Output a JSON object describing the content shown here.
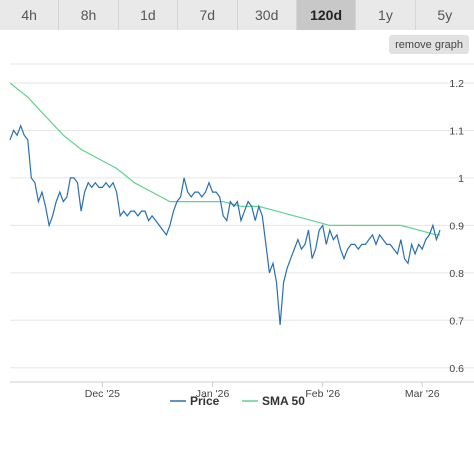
{
  "range_tabs": [
    "4h",
    "8h",
    "1d",
    "7d",
    "30d",
    "120d",
    "1y",
    "5y"
  ],
  "active_tab_index": 5,
  "remove_graph_label": "remove graph",
  "colors": {
    "price": "#2a6fb0",
    "sma": "#5fd38d",
    "grid": "#e6e6e6",
    "active_tab": "#c8c8c8"
  },
  "chart_data": {
    "type": "line",
    "title": "",
    "xlabel": "",
    "ylabel": "",
    "x_ticks": [
      "Dec '25",
      "Jan '26",
      "Feb '26",
      "Mar '26"
    ],
    "x_tick_days": [
      26,
      57,
      88,
      116
    ],
    "xlim_days": [
      0,
      121
    ],
    "y_ticks": [
      0.6,
      0.7,
      0.8,
      0.9,
      1,
      1.1,
      1.2
    ],
    "ylim": [
      0.57,
      1.24
    ],
    "grid": true,
    "legend_position": "bottom-center",
    "series": [
      {
        "name": "Price",
        "x": [
          0,
          1,
          2,
          3,
          4,
          5,
          6,
          7,
          8,
          9,
          10,
          11,
          12,
          13,
          14,
          15,
          16,
          17,
          18,
          19,
          20,
          21,
          22,
          23,
          24,
          25,
          26,
          27,
          28,
          29,
          30,
          31,
          32,
          33,
          34,
          35,
          36,
          37,
          38,
          39,
          40,
          41,
          42,
          43,
          44,
          45,
          46,
          47,
          48,
          49,
          50,
          51,
          52,
          53,
          54,
          55,
          56,
          57,
          58,
          59,
          60,
          61,
          62,
          63,
          64,
          65,
          66,
          67,
          68,
          69,
          70,
          71,
          72,
          73,
          74,
          75,
          76,
          77,
          78,
          79,
          80,
          81,
          82,
          83,
          84,
          85,
          86,
          87,
          88,
          89,
          90,
          91,
          92,
          93,
          94,
          95,
          96,
          97,
          98,
          99,
          100,
          101,
          102,
          103,
          104,
          105,
          106,
          107,
          108,
          109,
          110,
          111,
          112,
          113,
          114,
          115,
          116,
          117,
          118,
          119,
          120,
          121
        ],
        "values": [
          1.08,
          1.1,
          1.09,
          1.11,
          1.09,
          1.08,
          1.0,
          0.99,
          0.95,
          0.97,
          0.94,
          0.9,
          0.92,
          0.95,
          0.97,
          0.95,
          0.96,
          1.0,
          1.0,
          0.99,
          0.93,
          0.97,
          0.99,
          0.98,
          0.99,
          0.98,
          0.98,
          0.99,
          0.98,
          0.99,
          0.97,
          0.92,
          0.93,
          0.92,
          0.93,
          0.93,
          0.92,
          0.93,
          0.93,
          0.91,
          0.92,
          0.91,
          0.9,
          0.89,
          0.88,
          0.9,
          0.93,
          0.95,
          0.96,
          1.0,
          0.97,
          0.96,
          0.97,
          0.97,
          0.96,
          0.97,
          0.99,
          0.97,
          0.97,
          0.96,
          0.92,
          0.91,
          0.95,
          0.94,
          0.95,
          0.91,
          0.93,
          0.95,
          0.94,
          0.91,
          0.94,
          0.92,
          0.86,
          0.8,
          0.82,
          0.78,
          0.69,
          0.78,
          0.81,
          0.83,
          0.85,
          0.87,
          0.85,
          0.86,
          0.89,
          0.83,
          0.85,
          0.89,
          0.9,
          0.86,
          0.89,
          0.87,
          0.88,
          0.85,
          0.83,
          0.85,
          0.86,
          0.86,
          0.85,
          0.86,
          0.86,
          0.87,
          0.88,
          0.86,
          0.88,
          0.87,
          0.86,
          0.86,
          0.85,
          0.84,
          0.87,
          0.83,
          0.82,
          0.86,
          0.84,
          0.86,
          0.85,
          0.87,
          0.88,
          0.9,
          0.87,
          0.89
        ]
      },
      {
        "name": "SMA 50",
        "x": [
          0,
          5,
          10,
          15,
          20,
          25,
          30,
          35,
          40,
          45,
          50,
          55,
          60,
          65,
          70,
          75,
          80,
          85,
          90,
          95,
          100,
          105,
          110,
          115,
          120,
          121
        ],
        "values": [
          1.2,
          1.17,
          1.13,
          1.09,
          1.06,
          1.04,
          1.02,
          0.99,
          0.97,
          0.95,
          0.95,
          0.95,
          0.95,
          0.94,
          0.94,
          0.93,
          0.92,
          0.91,
          0.9,
          0.9,
          0.9,
          0.9,
          0.9,
          0.89,
          0.88,
          0.88
        ]
      }
    ]
  }
}
